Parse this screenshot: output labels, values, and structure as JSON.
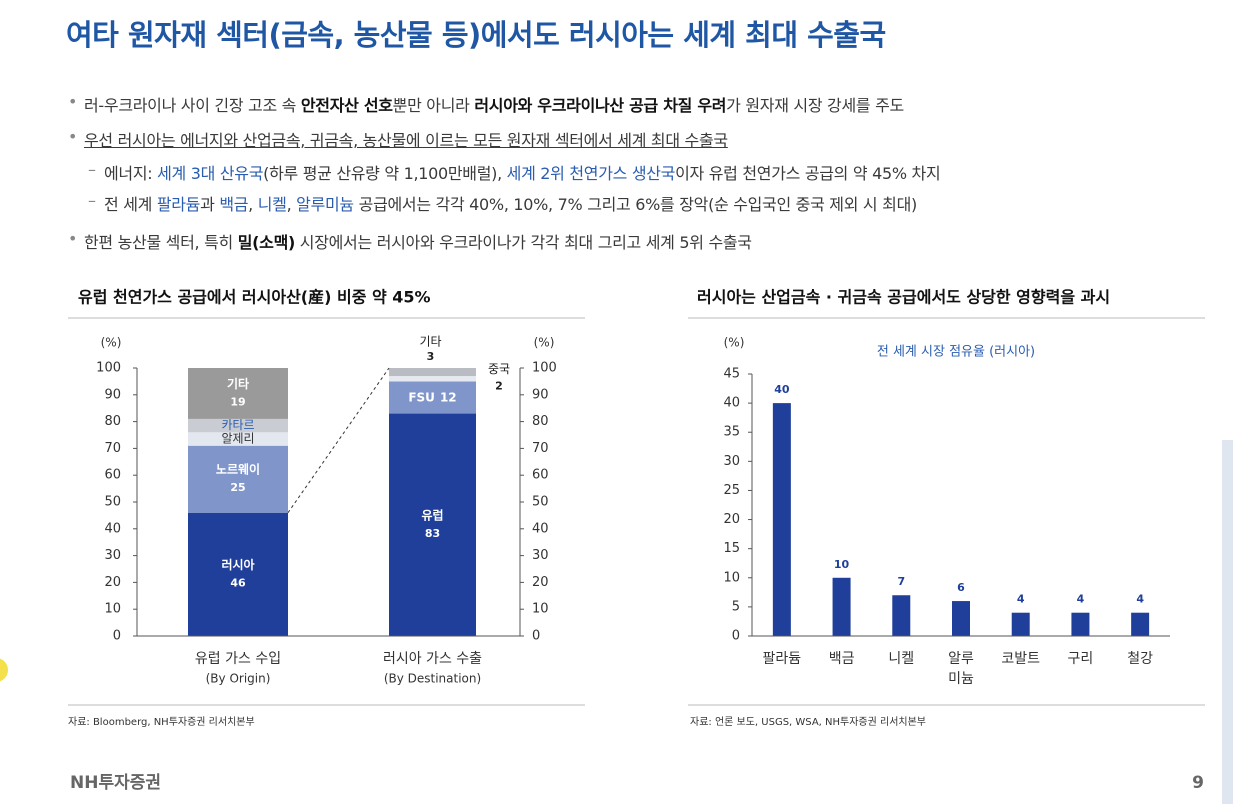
{
  "title": "여타 원자재 섹터(금속, 농산물 등)에서도 러시아는 세계 최대 수출국",
  "bullets": [
    {
      "level": 1,
      "segments": [
        {
          "text": "러-우크라이나 사이 긴장 고조 속 ",
          "style": "plain"
        },
        {
          "text": "안전자산 선호",
          "style": "bold"
        },
        {
          "text": "뿐만 아니라 ",
          "style": "plain"
        },
        {
          "text": "러시아와 우크라이나산 공급 차질 우려",
          "style": "bold"
        },
        {
          "text": "가 원자재 시장 강세를 주도",
          "style": "plain"
        }
      ]
    },
    {
      "level": 1,
      "segments": [
        {
          "text": "우선 러시아는 에너지와 산업금속, 귀금속, 농산물에 이르는 모든 원자재 섹터에서 세계 최대 수출국",
          "style": "underline"
        }
      ]
    },
    {
      "level": 2,
      "segments": [
        {
          "text": "에너지: ",
          "style": "plain"
        },
        {
          "text": "세계 3대 산유국",
          "style": "blue"
        },
        {
          "text": "(하루 평균 산유량 약 1,100만배럴), ",
          "style": "plain"
        },
        {
          "text": "세계 2위 천연가스 생산국",
          "style": "blue"
        },
        {
          "text": "이자 유럽 천연가스 공급의 약 45% 차지",
          "style": "plain"
        }
      ]
    },
    {
      "level": 2,
      "segments": [
        {
          "text": "전 세계 ",
          "style": "plain"
        },
        {
          "text": "팔라듐",
          "style": "blue"
        },
        {
          "text": "과 ",
          "style": "plain"
        },
        {
          "text": "백금",
          "style": "blue"
        },
        {
          "text": ", ",
          "style": "plain"
        },
        {
          "text": "니켈",
          "style": "blue"
        },
        {
          "text": ", ",
          "style": "plain"
        },
        {
          "text": "알루미늄",
          "style": "blue"
        },
        {
          "text": " 공급에서는 각각 40%, 10%, 7% 그리고 6%를 장악(순 수입국인 중국 제외 시 최대)",
          "style": "plain"
        }
      ]
    },
    {
      "level": 1,
      "segments": [
        {
          "text": "한편 농산물 섹터, 특히 ",
          "style": "plain"
        },
        {
          "text": "밀(소맥)",
          "style": "bold"
        },
        {
          "text": " 시장에서는 러시아와 우크라이나가 각각 최대 그리고 세계 5위 수출국",
          "style": "plain"
        }
      ]
    }
  ],
  "chart_data": [
    {
      "type": "stacked_bar",
      "title": "유럽 천연가스 공급에서 러시아산(産) 비중 약 45%",
      "y_unit": "(%)",
      "ylim": [
        0,
        100
      ],
      "yticks": [
        0,
        10,
        20,
        30,
        40,
        50,
        60,
        70,
        80,
        90,
        100
      ],
      "categories": [
        "유럽 가스 수입",
        "러시아 가스 수출"
      ],
      "category_notes": [
        "(By Origin)",
        "(By Destination)"
      ],
      "stacks": [
        {
          "segments": [
            {
              "name": "러시아",
              "value": 46,
              "color": "#1f3f9a",
              "label_color": "#ffffff",
              "labeled": true
            },
            {
              "name": "노르웨이",
              "value": 25,
              "color": "#8096cb",
              "label_color": "#ffffff",
              "labeled": true
            },
            {
              "name": "알제리",
              "value": 5,
              "color": "#e3e7ef",
              "label_color": "#333333",
              "labeled": false
            },
            {
              "name": "카타르",
              "value": 5,
              "color": "#c9ccd3",
              "label_color": "#2a5db0",
              "labeled": false
            },
            {
              "name": "기타",
              "value": 19,
              "color": "#9a9a9a",
              "label_color": "#ffffff",
              "labeled": true
            }
          ]
        },
        {
          "segments": [
            {
              "name": "유럽",
              "value": 83,
              "color": "#1f3f9a",
              "label_color": "#ffffff",
              "labeled": true
            },
            {
              "name": "FSU",
              "value": 12,
              "color": "#8096cb",
              "label_color": "#ffffff",
              "labeled": true
            },
            {
              "name": "중국",
              "value": 2,
              "color": "#e6e9f0",
              "label_color": "#222222",
              "labeled": true
            },
            {
              "name": "기타",
              "value": 3,
              "color": "#b9bcc3",
              "label_color": "#222222",
              "labeled": true
            }
          ]
        }
      ],
      "source": "자료: Bloomberg, NH투자증권 리서치본부"
    },
    {
      "type": "bar",
      "title": "러시아는 산업금속 · 귀금속 공급에서도 상당한 영향력을 과시",
      "subtitle": "전 세계 시장 점유율 (러시아)",
      "y_unit": "(%)",
      "ylim": [
        0,
        45
      ],
      "yticks": [
        0,
        5,
        10,
        15,
        20,
        25,
        30,
        35,
        40,
        45
      ],
      "categories": [
        "팔라듐",
        "백금",
        "니켈",
        "알루미늄",
        "코발트",
        "구리",
        "철강"
      ],
      "values": [
        40,
        10,
        7,
        6,
        4,
        4,
        4
      ],
      "color": "#1f3f9a",
      "source": "자료: 언론 보도, USGS, WSA, NH투자증권 리서치본부"
    }
  ],
  "footer": {
    "logo": "NH투자증권",
    "page": "9"
  }
}
